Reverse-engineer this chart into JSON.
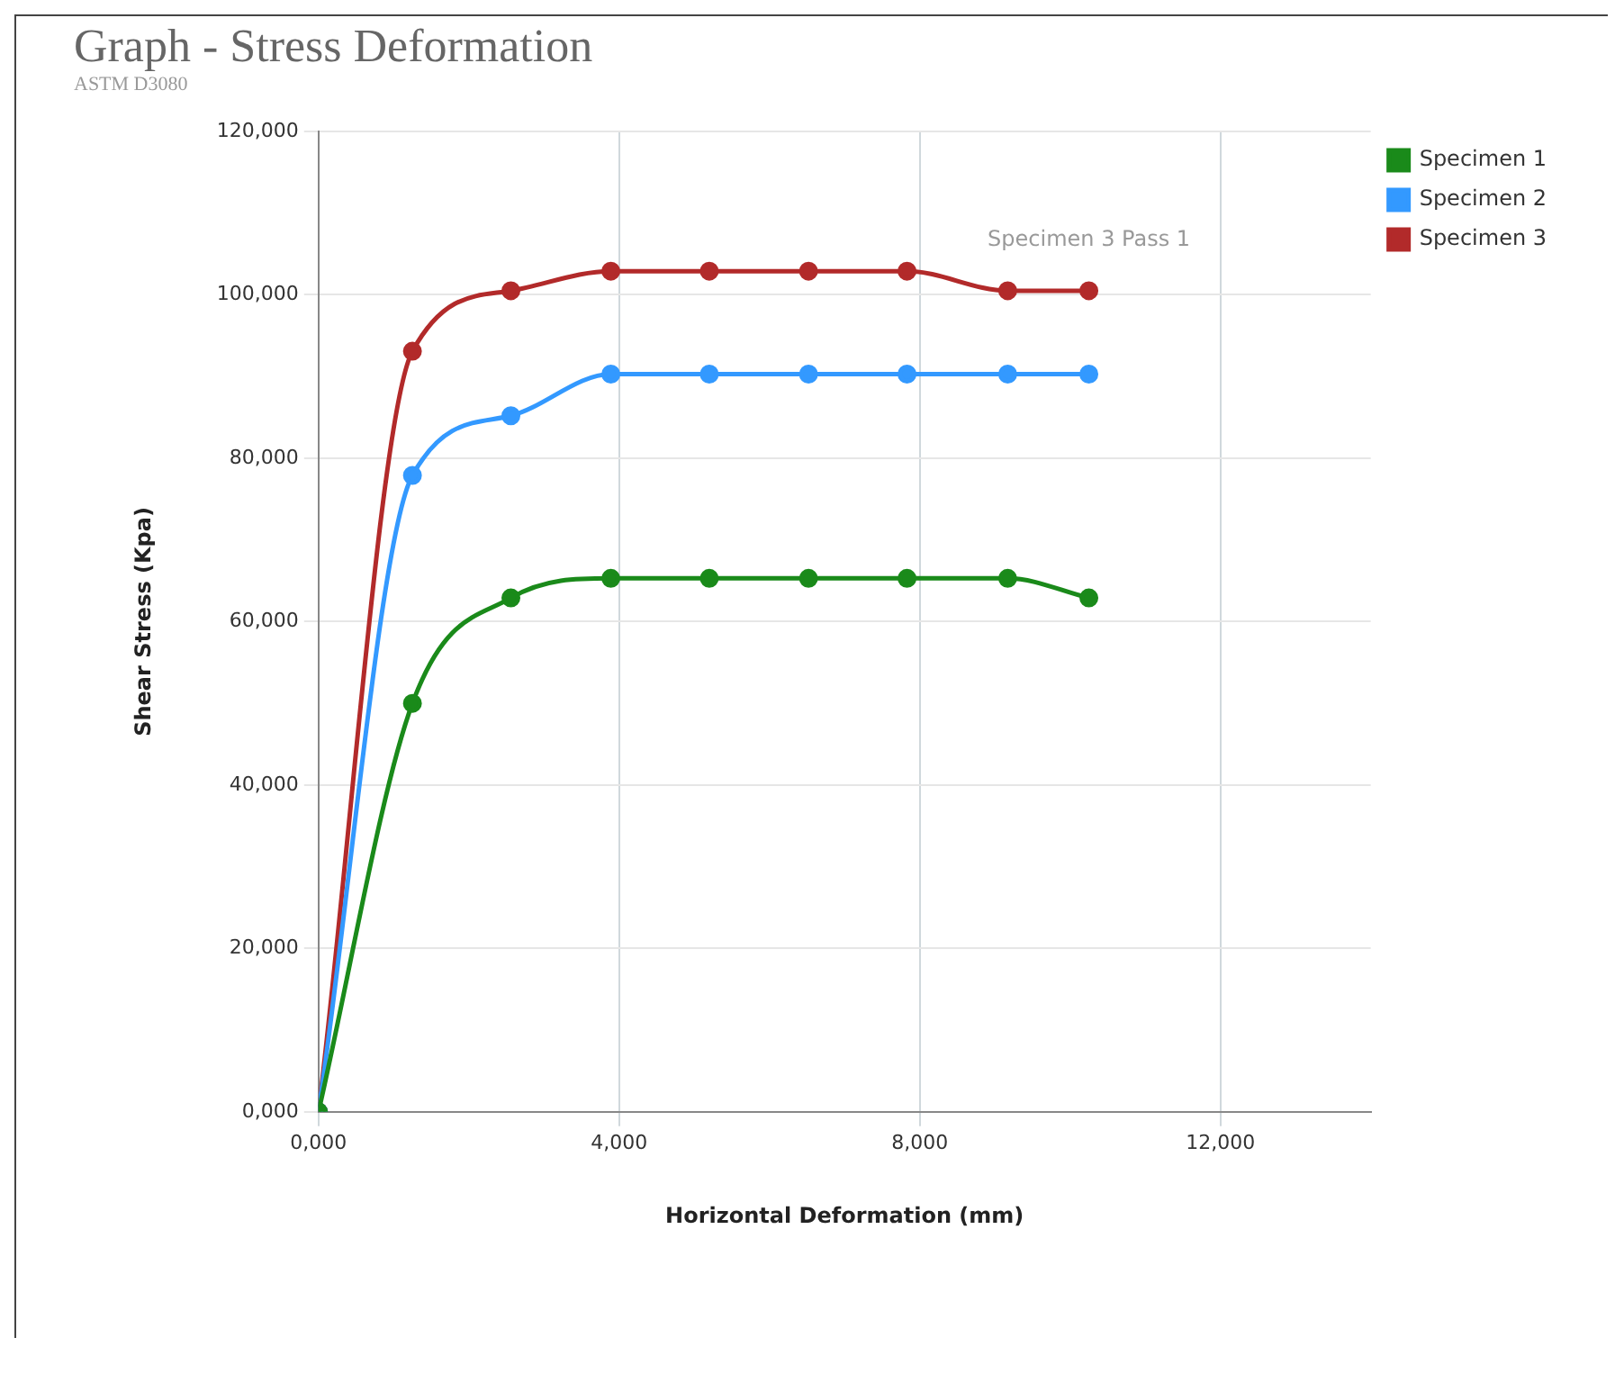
{
  "chart_data": {
    "type": "line",
    "title": "Graph - Stress Deformation",
    "subtitle": "ASTM D3080",
    "xlabel": "Horizontal Deformation (mm)",
    "ylabel": "Shear Stress (Kpa)",
    "x": [
      0,
      1.25,
      2.56,
      3.89,
      5.2,
      6.52,
      7.83,
      9.17,
      10.25
    ],
    "series": [
      {
        "name": "Specimen 1",
        "color": "#1a8a1a",
        "values": [
          0,
          50,
          62.9,
          65.3,
          65.3,
          65.3,
          65.3,
          65.3,
          62.9
        ]
      },
      {
        "name": "Specimen 2",
        "color": "#3399ff",
        "values": [
          0,
          77.9,
          85.2,
          90.3,
          90.3,
          90.3,
          90.3,
          90.3,
          90.3
        ]
      },
      {
        "name": "Specimen 3",
        "color": "#b22a2a",
        "values": [
          0,
          93.1,
          100.5,
          102.9,
          102.9,
          102.9,
          102.9,
          100.5,
          100.5
        ]
      }
    ],
    "xlim": [
      0,
      14
    ],
    "ylim": [
      0,
      120
    ],
    "xticks": [
      {
        "value": 0,
        "label": "0,000"
      },
      {
        "value": 4,
        "label": "4,000"
      },
      {
        "value": 8,
        "label": "8,000"
      },
      {
        "value": 12,
        "label": "12,000"
      }
    ],
    "yticks": [
      {
        "value": 0,
        "label": "0,000"
      },
      {
        "value": 20,
        "label": "20,000"
      },
      {
        "value": 40,
        "label": "40,000"
      },
      {
        "value": 60,
        "label": "60,000"
      },
      {
        "value": 80,
        "label": "80,000"
      },
      {
        "value": 100,
        "label": "100,000"
      },
      {
        "value": 120,
        "label": "120,000"
      }
    ],
    "annotations": [
      {
        "text": "Specimen 3 Pass 1",
        "x": 10.25,
        "y": 100.5
      }
    ],
    "grid": true,
    "legend": "right",
    "marker": "circle",
    "line_style": "solid"
  }
}
